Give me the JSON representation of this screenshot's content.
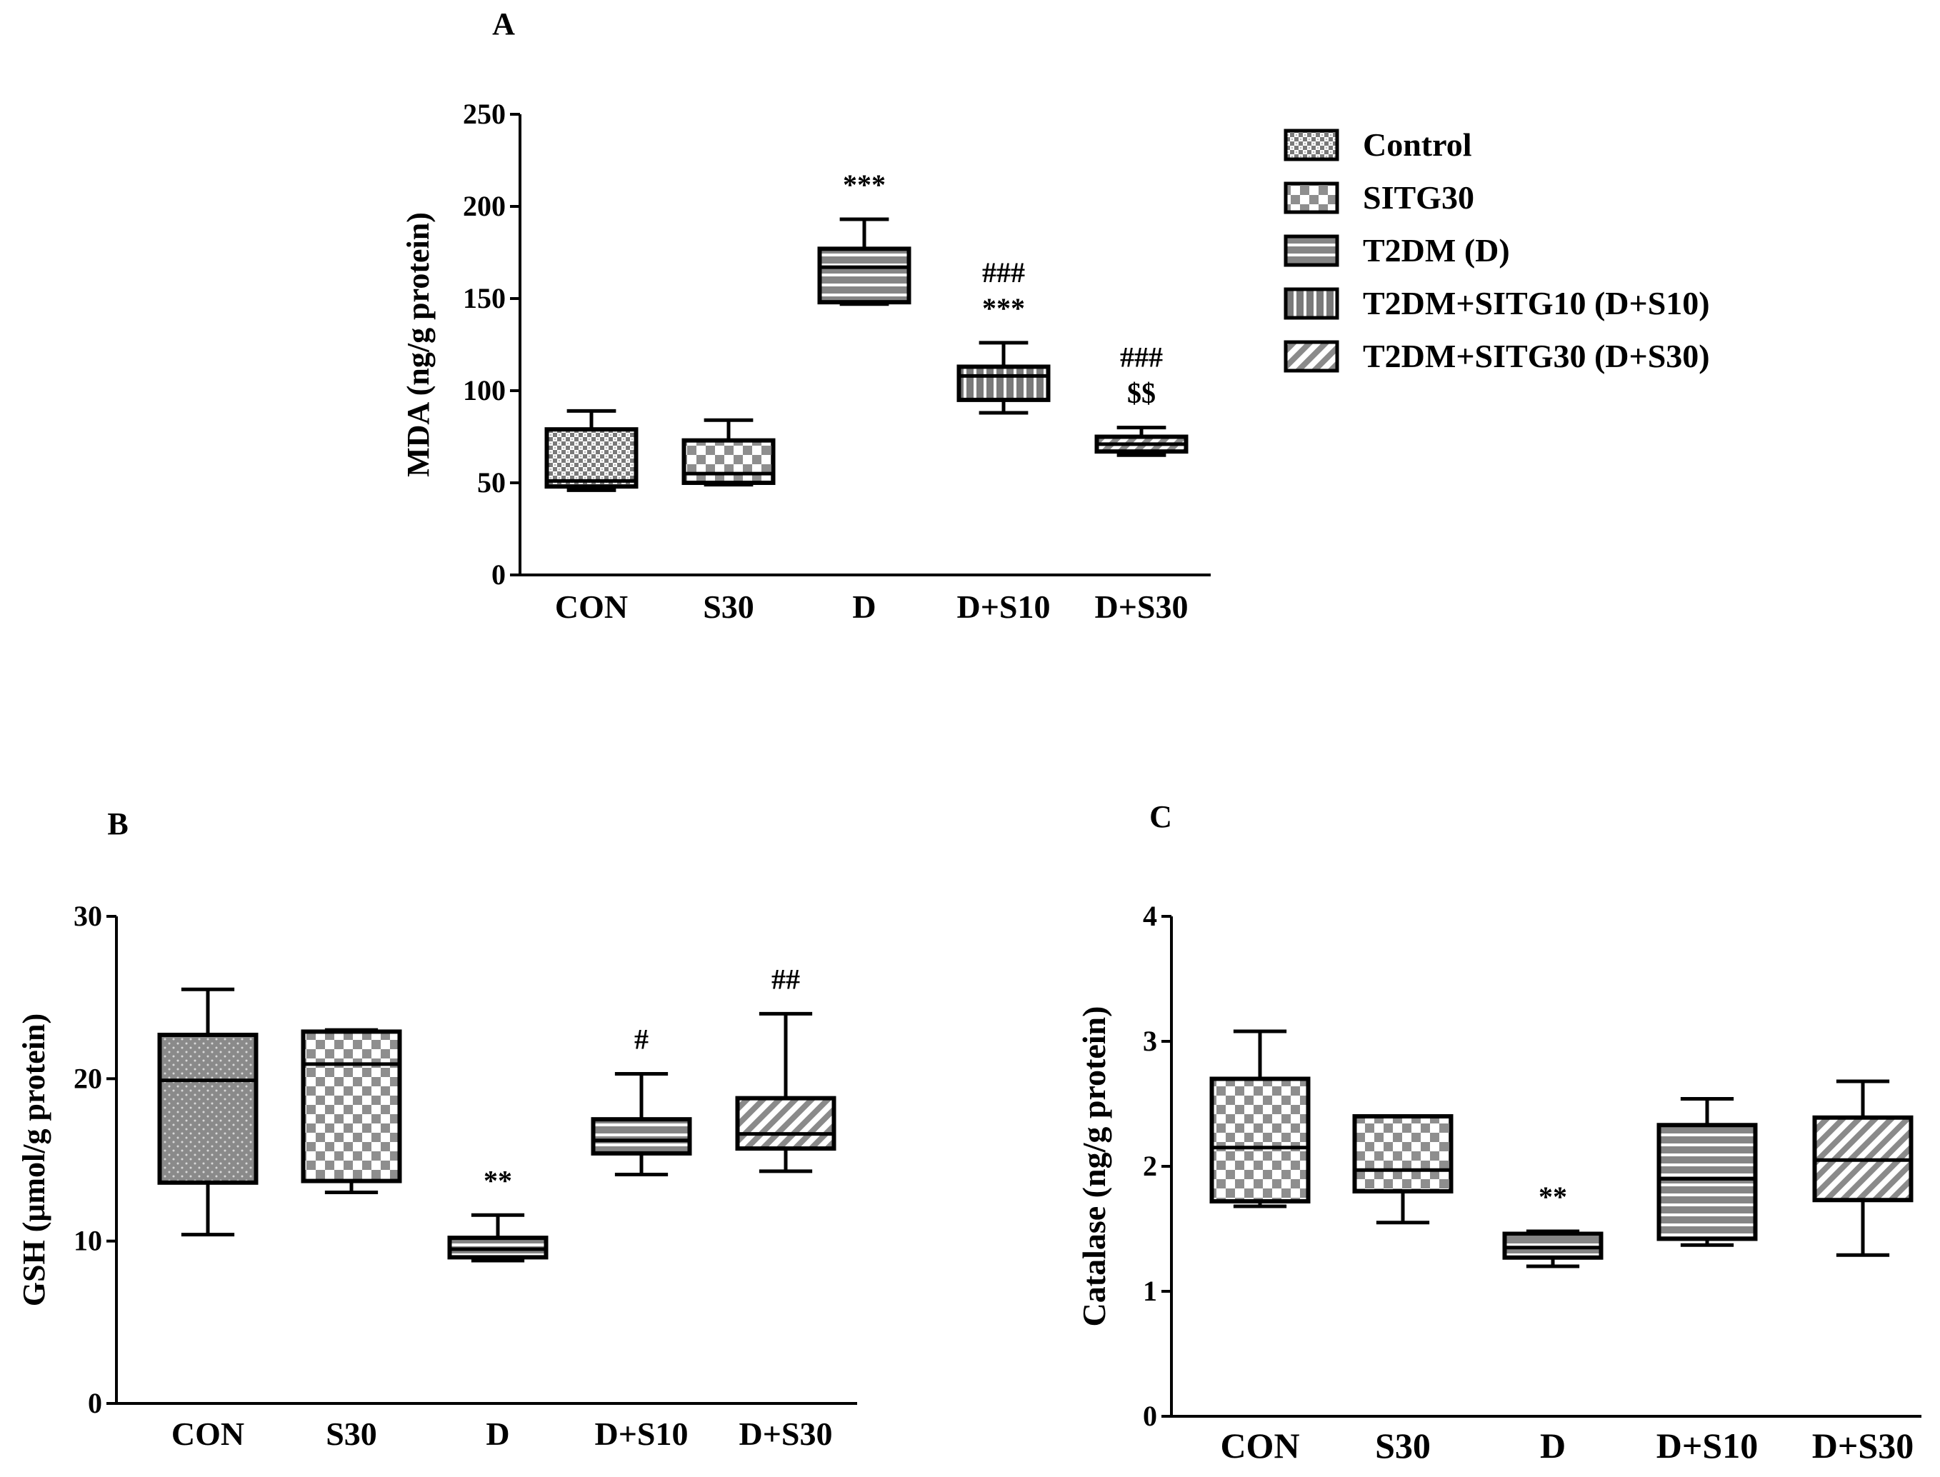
{
  "legend": [
    {
      "label": "Control",
      "pattern": "pat-control"
    },
    {
      "label": "SITG30",
      "pattern": "pat-sitg30"
    },
    {
      "label": "T2DM (D)",
      "pattern": "pat-t2dm"
    },
    {
      "label": "T2DM+SITG10 (D+S10)",
      "pattern": "pat-d10"
    },
    {
      "label": "T2DM+SITG30 (D+S30)",
      "pattern": "pat-d30"
    }
  ],
  "chart_data": [
    {
      "type": "box",
      "panel": "A",
      "title": "",
      "xlabel": "",
      "ylabel": "MDA (ng/g protein)",
      "ylim": [
        0,
        250
      ],
      "yticks": [
        0,
        50,
        100,
        150,
        200,
        250
      ],
      "categories": [
        "CON",
        "S30",
        "D",
        "D+S10",
        "D+S30"
      ],
      "patterns": [
        "pat-control",
        "pat-sitg30",
        "pat-t2dm",
        "pat-d10",
        "pat-d30"
      ],
      "boxes": [
        {
          "min": 46,
          "q1": 48,
          "median": 51,
          "q3": 79,
          "max": 89
        },
        {
          "min": 49,
          "q1": 50,
          "median": 55,
          "q3": 73,
          "max": 84
        },
        {
          "min": 147,
          "q1": 148,
          "median": 167,
          "q3": 177,
          "max": 193
        },
        {
          "min": 88,
          "q1": 95,
          "median": 108,
          "q3": 113,
          "max": 126
        },
        {
          "min": 65,
          "q1": 67,
          "median": 71,
          "q3": 75,
          "max": 80
        }
      ],
      "annotations": [
        [],
        [],
        [
          "***"
        ],
        [
          "###",
          "***"
        ],
        [
          "###",
          "$$"
        ]
      ]
    },
    {
      "type": "box",
      "panel": "B",
      "title": "",
      "xlabel": "",
      "ylabel": "GSH (μmol/g protein)",
      "ylim": [
        0,
        30
      ],
      "yticks": [
        0,
        10,
        20,
        30
      ],
      "categories": [
        "CON",
        "S30",
        "D",
        "D+S10",
        "D+S30"
      ],
      "patterns": [
        "pat-con-b",
        "pat-sitg30",
        "pat-t2dm",
        "pat-t2dm",
        "pat-d30"
      ],
      "boxes": [
        {
          "min": 10.4,
          "q1": 13.6,
          "median": 19.9,
          "q3": 22.7,
          "max": 25.5
        },
        {
          "min": 13.0,
          "q1": 13.7,
          "median": 20.9,
          "q3": 22.9,
          "max": 23.0
        },
        {
          "min": 8.8,
          "q1": 9.0,
          "median": 9.5,
          "q3": 10.2,
          "max": 11.6
        },
        {
          "min": 14.1,
          "q1": 15.4,
          "median": 16.2,
          "q3": 17.5,
          "max": 20.3
        },
        {
          "min": 14.3,
          "q1": 15.7,
          "median": 16.6,
          "q3": 18.8,
          "max": 24.0
        }
      ],
      "annotations": [
        [],
        [],
        [
          "**"
        ],
        [
          "#"
        ],
        [
          "##"
        ]
      ]
    },
    {
      "type": "box",
      "panel": "C",
      "title": "",
      "xlabel": "",
      "ylabel": "Catalase (ng/g protein)",
      "ylim": [
        0,
        4
      ],
      "yticks": [
        0,
        1,
        2,
        3,
        4
      ],
      "categories": [
        "CON",
        "S30",
        "D",
        "D+S10",
        "D+S30"
      ],
      "patterns": [
        "pat-sitg30",
        "pat-sitg30",
        "pat-t2dm",
        "pat-t2dm",
        "pat-d30"
      ],
      "boxes": [
        {
          "min": 1.68,
          "q1": 1.72,
          "median": 2.15,
          "q3": 2.7,
          "max": 3.08
        },
        {
          "min": 1.55,
          "q1": 1.8,
          "median": 1.97,
          "q3": 2.4,
          "max": 2.4
        },
        {
          "min": 1.2,
          "q1": 1.27,
          "median": 1.35,
          "q3": 1.46,
          "max": 1.48
        },
        {
          "min": 1.37,
          "q1": 1.42,
          "median": 1.9,
          "q3": 2.33,
          "max": 2.54
        },
        {
          "min": 1.29,
          "q1": 1.73,
          "median": 2.05,
          "q3": 2.39,
          "max": 2.68
        }
      ],
      "annotations": [
        [],
        [],
        [
          "**"
        ],
        [],
        []
      ]
    }
  ]
}
